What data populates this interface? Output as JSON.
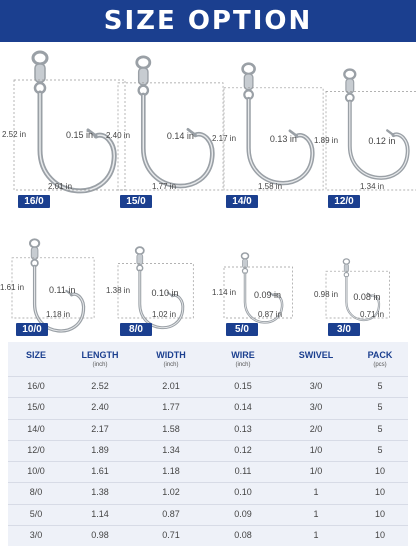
{
  "title": "SIZE OPTION",
  "hooks": [
    {
      "size": "16/0",
      "length": "2.52 in",
      "width": "2.01 in",
      "wire": "0.15 in"
    },
    {
      "size": "15/0",
      "length": "2.40 in",
      "width": "1.77 in",
      "wire": "0.14 in"
    },
    {
      "size": "14/0",
      "length": "2.17 in",
      "width": "1.58 in",
      "wire": "0.13 in"
    },
    {
      "size": "12/0",
      "length": "1.89 in",
      "width": "1.34 in",
      "wire": "0.12 in"
    },
    {
      "size": "10/0",
      "length": "1.61 in",
      "width": "1.18 in",
      "wire": "0.11 in"
    },
    {
      "size": "8/0",
      "length": "1.38 in",
      "width": "1.02 in",
      "wire": "0.10 in"
    },
    {
      "size": "5/0",
      "length": "1.14 in",
      "width": "0.87 in",
      "wire": "0.09 in"
    },
    {
      "size": "3/0",
      "length": "0.98 in",
      "width": "0.71 in",
      "wire": "0.08 in"
    }
  ],
  "table": {
    "headers": [
      {
        "label": "SIZE",
        "unit": ""
      },
      {
        "label": "LENGTH",
        "unit": "(inch)"
      },
      {
        "label": "WIDTH",
        "unit": "(inch)"
      },
      {
        "label": "WIRE",
        "unit": "(inch)"
      },
      {
        "label": "SWIVEL",
        "unit": ""
      },
      {
        "label": "PACK",
        "unit": "(pcs)"
      }
    ],
    "rows": [
      [
        "16/0",
        "2.52",
        "2.01",
        "0.15",
        "3/0",
        "5"
      ],
      [
        "15/0",
        "2.40",
        "1.77",
        "0.14",
        "3/0",
        "5"
      ],
      [
        "14/0",
        "2.17",
        "1.58",
        "0.13",
        "2/0",
        "5"
      ],
      [
        "12/0",
        "1.89",
        "1.34",
        "0.12",
        "1/0",
        "5"
      ],
      [
        "10/0",
        "1.61",
        "1.18",
        "0.11",
        "1/0",
        "10"
      ],
      [
        "8/0",
        "1.38",
        "1.02",
        "0.10",
        "1",
        "10"
      ],
      [
        "5/0",
        "1.14",
        "0.87",
        "0.09",
        "1",
        "10"
      ],
      [
        "3/0",
        "0.98",
        "0.71",
        "0.08",
        "1",
        "10"
      ]
    ]
  },
  "colors": {
    "accent": "#1b3f8f",
    "table_bg": "#eef1f8",
    "hook_metal": "#9aa0a6"
  },
  "hook_icon": "circle-hook-with-swivel-icon"
}
